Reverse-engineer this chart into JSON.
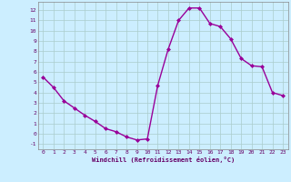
{
  "x": [
    0,
    1,
    2,
    3,
    4,
    5,
    6,
    7,
    8,
    9,
    10,
    11,
    12,
    13,
    14,
    15,
    16,
    17,
    18,
    19,
    20,
    21,
    22,
    23
  ],
  "y": [
    5.5,
    4.5,
    3.2,
    2.5,
    1.8,
    1.2,
    0.5,
    0.2,
    -0.3,
    -0.6,
    -0.5,
    4.7,
    8.2,
    11.0,
    12.2,
    12.2,
    10.7,
    10.4,
    9.2,
    7.3,
    6.6,
    6.5,
    4.0,
    3.7
  ],
  "line_color": "#990099",
  "marker": "D",
  "marker_size": 2.0,
  "bg_color": "#cceeff",
  "grid_color": "#aacccc",
  "xlabel": "Windchill (Refroidissement éolien,°C)",
  "xlim": [
    -0.5,
    23.5
  ],
  "ylim": [
    -1.5,
    12.8
  ],
  "xticks": [
    0,
    1,
    2,
    3,
    4,
    5,
    6,
    7,
    8,
    9,
    10,
    11,
    12,
    13,
    14,
    15,
    16,
    17,
    18,
    19,
    20,
    21,
    22,
    23
  ],
  "yticks": [
    -1,
    0,
    1,
    2,
    3,
    4,
    5,
    6,
    7,
    8,
    9,
    10,
    11,
    12
  ]
}
